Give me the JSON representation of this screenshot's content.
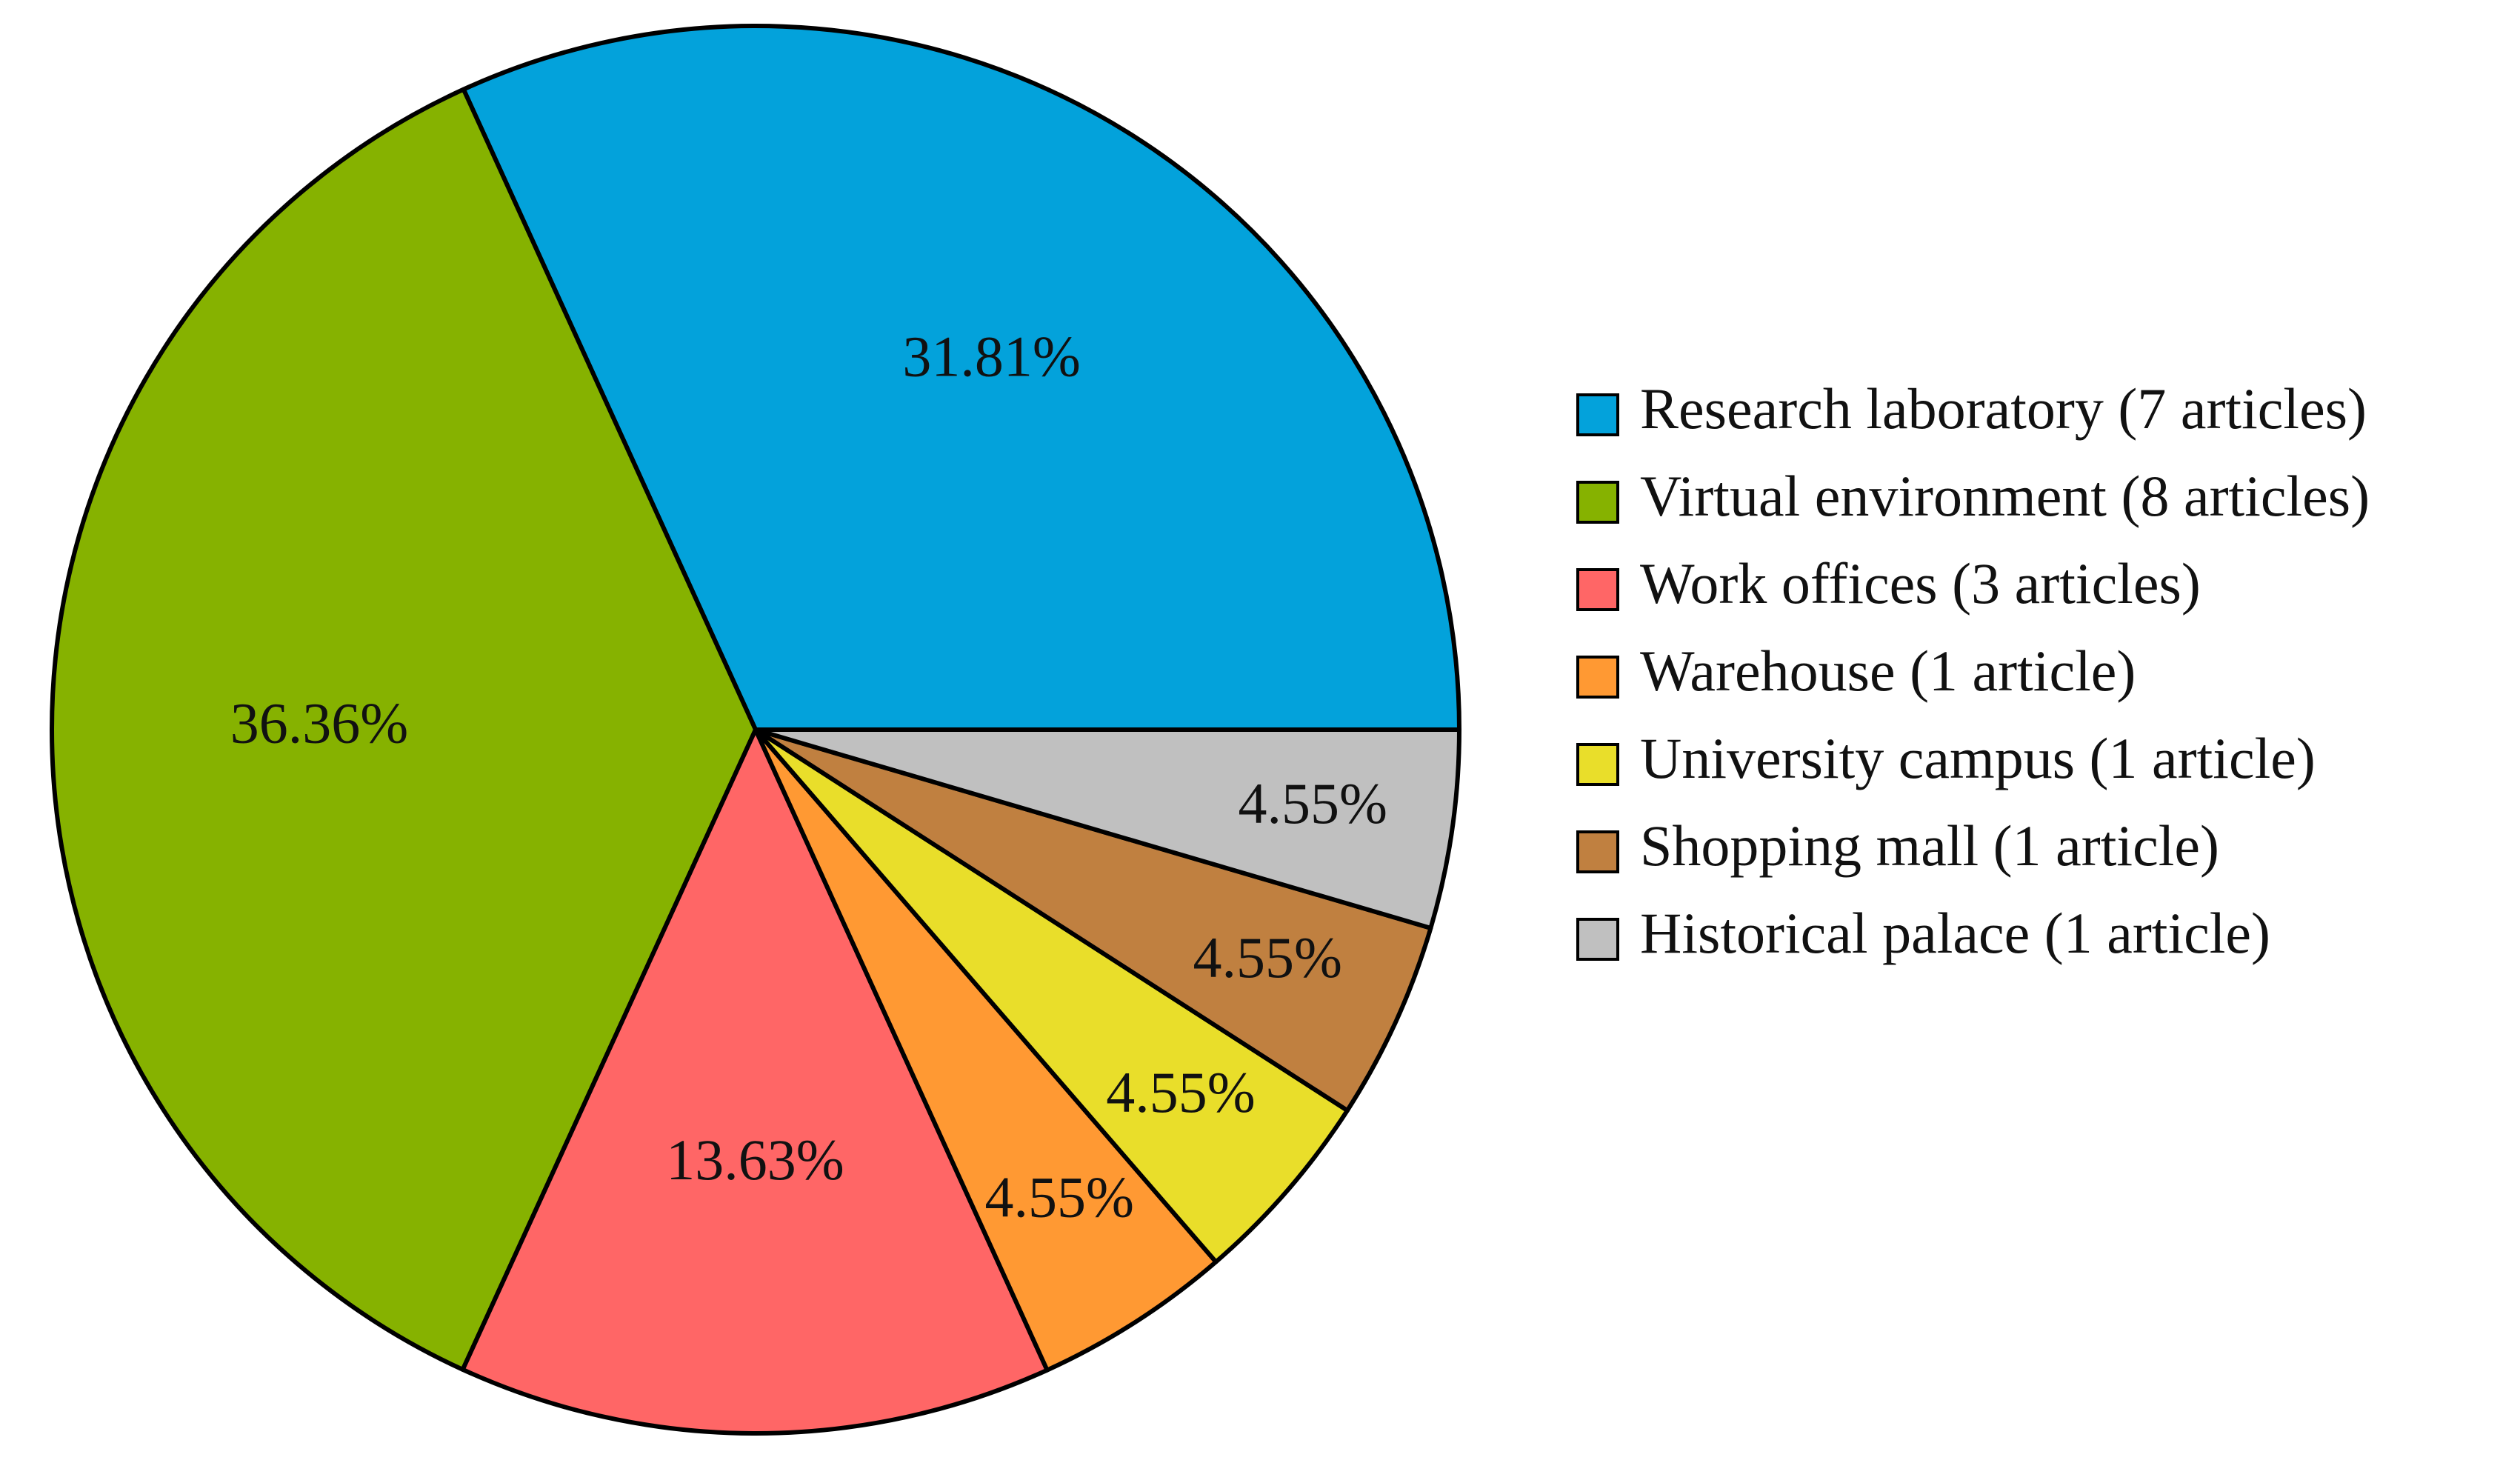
{
  "chart_data": {
    "type": "pie",
    "title": "",
    "legend_position": "right",
    "slices": [
      {
        "label": "Research laboratory (7 articles)",
        "value": 31.81,
        "data_label": "31.81%",
        "color": "#03A2DB"
      },
      {
        "label": "Virtual environment (8 articles)",
        "value": 36.36,
        "data_label": "36.36%",
        "color": "#86B200"
      },
      {
        "label": "Work offices (3 articles)",
        "value": 13.63,
        "data_label": "13.63%",
        "color": "#FF6666"
      },
      {
        "label": "Warehouse (1 article)",
        "value": 4.55,
        "data_label": "4.55%",
        "color": "#FF9933"
      },
      {
        "label": "University campus (1 article)",
        "value": 4.55,
        "data_label": "4.55%",
        "color": "#E9DE2A"
      },
      {
        "label": "Shopping mall (1 article)",
        "value": 4.55,
        "data_label": "4.55%",
        "color": "#C08040"
      },
      {
        "label": "Historical palace (1 article)",
        "value": 4.55,
        "data_label": "4.55%",
        "color": "#C0C0C0"
      }
    ]
  }
}
